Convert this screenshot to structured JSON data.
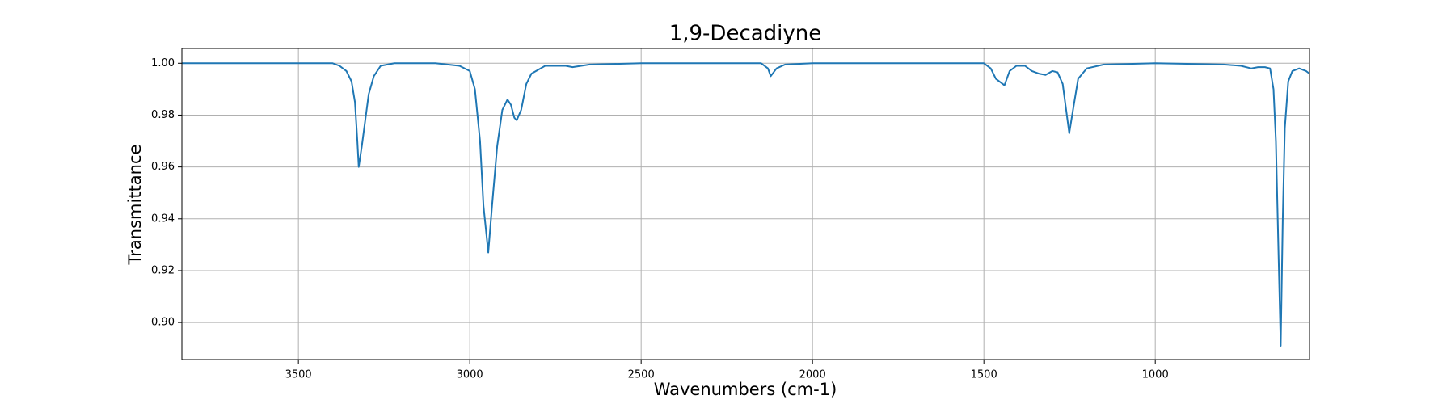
{
  "chart_data": {
    "type": "line",
    "title": "1,9-Decadiyne",
    "x_label": "Wavenumbers (cm-1)",
    "y_label": "Transmittance",
    "x": [
      3840,
      3600,
      3400,
      3380,
      3360,
      3345,
      3335,
      3328,
      3324,
      3315,
      3305,
      3295,
      3280,
      3260,
      3220,
      3100,
      3030,
      3000,
      2985,
      2970,
      2960,
      2946,
      2935,
      2920,
      2905,
      2890,
      2880,
      2870,
      2863,
      2850,
      2835,
      2820,
      2780,
      2720,
      2700,
      2650,
      2500,
      2150,
      2130,
      2122,
      2105,
      2080,
      2000,
      1500,
      1480,
      1465,
      1440,
      1425,
      1405,
      1380,
      1360,
      1340,
      1320,
      1300,
      1285,
      1270,
      1260,
      1251,
      1240,
      1225,
      1200,
      1150,
      1000,
      800,
      750,
      720,
      700,
      680,
      665,
      655,
      648,
      641,
      634,
      628,
      622,
      612,
      600,
      580,
      560,
      550
    ],
    "series": [
      {
        "name": "1,9-Decadiyne",
        "color": "#1f77b4",
        "values": [
          1.0,
          1.0,
          1.0,
          0.999,
          0.997,
          0.993,
          0.985,
          0.97,
          0.96,
          0.968,
          0.978,
          0.988,
          0.995,
          0.999,
          1.0,
          1.0,
          0.999,
          0.997,
          0.99,
          0.97,
          0.945,
          0.927,
          0.945,
          0.968,
          0.982,
          0.986,
          0.984,
          0.979,
          0.978,
          0.982,
          0.992,
          0.996,
          0.999,
          0.999,
          0.9985,
          0.9995,
          1.0,
          1.0,
          0.998,
          0.995,
          0.998,
          0.9995,
          1.0,
          1.0,
          0.998,
          0.994,
          0.9915,
          0.997,
          0.999,
          0.999,
          0.997,
          0.996,
          0.9955,
          0.997,
          0.9965,
          0.992,
          0.982,
          0.973,
          0.982,
          0.994,
          0.998,
          0.9995,
          1.0,
          0.9995,
          0.999,
          0.998,
          0.9985,
          0.9985,
          0.998,
          0.99,
          0.97,
          0.93,
          0.891,
          0.94,
          0.975,
          0.993,
          0.997,
          0.998,
          0.997,
          0.996
        ]
      }
    ],
    "xlim": [
      3840,
      550
    ],
    "ylim": [
      0.8857,
      1.0057
    ],
    "xticks": [
      3500,
      3000,
      2500,
      2000,
      1500,
      1000
    ],
    "yticks": [
      {
        "value": 0.9,
        "label": "0.90"
      },
      {
        "value": 0.92,
        "label": "0.92"
      },
      {
        "value": 0.94,
        "label": "0.94"
      },
      {
        "value": 0.96,
        "label": "0.96"
      },
      {
        "value": 0.98,
        "label": "0.98"
      },
      {
        "value": 1.0,
        "label": "1.00"
      }
    ],
    "grid": true
  }
}
